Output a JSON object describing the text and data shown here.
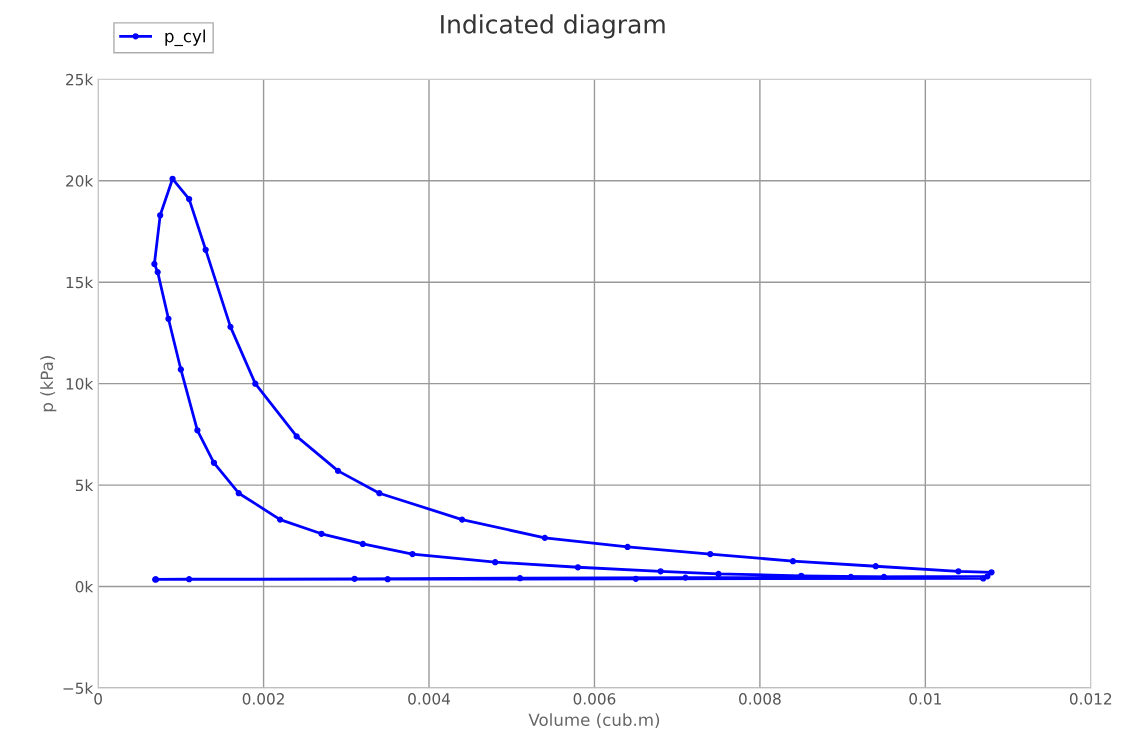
{
  "chart_data": {
    "type": "line",
    "title": "Indicated diagram",
    "xlabel": "Volume (cub.m)",
    "ylabel": "p (kPa)",
    "xlim": [
      0,
      0.012
    ],
    "xticks": [
      0,
      0.002,
      0.004,
      0.006,
      0.008,
      0.01,
      0.012
    ],
    "ylim": [
      -5000,
      25000
    ],
    "yticks": [
      {
        "value": -5000,
        "label": "−5k"
      },
      {
        "value": 0,
        "label": "0k"
      },
      {
        "value": 5000,
        "label": "5k"
      },
      {
        "value": 10000,
        "label": "10k"
      },
      {
        "value": 15000,
        "label": "15k"
      },
      {
        "value": 20000,
        "label": "20k"
      },
      {
        "value": 25000,
        "label": "25k"
      }
    ],
    "grid": true,
    "legend": "top left",
    "marker": "circle",
    "line_style": "solid",
    "series": [
      {
        "name": "p_cyl",
        "color": "#0000ff",
        "x": [
          0.0007,
          0.0035,
          0.0065,
          0.0107,
          0.0095,
          0.0085,
          0.0075,
          0.0068,
          0.0058,
          0.0048,
          0.0038,
          0.0032,
          0.0027,
          0.0022,
          0.0017,
          0.0014,
          0.0012,
          0.001,
          0.00085,
          0.00072,
          0.00068,
          0.00075,
          0.0009,
          0.0011,
          0.0013,
          0.0016,
          0.0019,
          0.0024,
          0.0029,
          0.0034,
          0.0044,
          0.0054,
          0.0064,
          0.0074,
          0.0084,
          0.0094,
          0.0104,
          0.0108,
          0.01075,
          0.0091,
          0.0071,
          0.0051,
          0.0031,
          0.0011,
          0.00069
        ],
        "values": [
          350,
          360,
          380,
          400,
          470,
          530,
          620,
          750,
          950,
          1200,
          1600,
          2100,
          2600,
          3300,
          4600,
          6100,
          7700,
          10700,
          13200,
          15500,
          15900,
          18300,
          20100,
          19100,
          16600,
          12800,
          10000,
          7400,
          5700,
          4600,
          3300,
          2400,
          1950,
          1600,
          1250,
          1000,
          750,
          700,
          500,
          470,
          440,
          410,
          380,
          360,
          350
        ]
      }
    ]
  }
}
